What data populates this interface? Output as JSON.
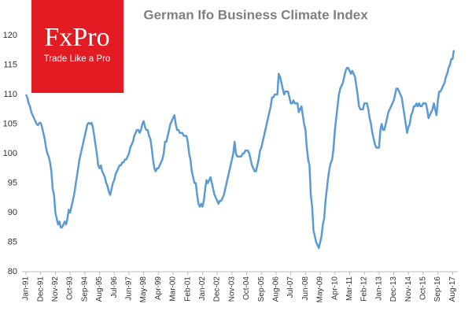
{
  "chart_data": {
    "type": "line",
    "title": "German Ifo Business Climate Index",
    "logo": {
      "name": "FxPro",
      "tagline": "Trade Like a Pro"
    },
    "categories": [
      "Jan-91",
      null,
      null,
      null,
      null,
      null,
      null,
      null,
      null,
      null,
      null,
      "Dec-91",
      null,
      null,
      null,
      null,
      null,
      null,
      null,
      null,
      null,
      null,
      "Nov-92",
      null,
      null,
      null,
      null,
      null,
      null,
      null,
      null,
      null,
      null,
      "Oct-93",
      null,
      null,
      null,
      null,
      null,
      null,
      null,
      null,
      null,
      null,
      "Sep-94",
      null,
      null,
      null,
      null,
      null,
      null,
      null,
      null,
      null,
      null,
      "Aug-95",
      null,
      null,
      null,
      null,
      null,
      null,
      null,
      null,
      null,
      null,
      "Jul-96",
      null,
      null,
      null,
      null,
      null,
      null,
      null,
      null,
      null,
      null,
      "Jun-97",
      null,
      null,
      null,
      null,
      null,
      null,
      null,
      null,
      null,
      null,
      "May-98",
      null,
      null,
      null,
      null,
      null,
      null,
      null,
      null,
      null,
      null,
      "Apr-99",
      null,
      null,
      null,
      null,
      null,
      null,
      null,
      null,
      null,
      null,
      "Mar-00",
      null,
      null,
      null,
      null,
      null,
      null,
      null,
      null,
      null,
      null,
      "Feb-01",
      null,
      null,
      null,
      null,
      null,
      null,
      null,
      null,
      null,
      null,
      "Jan-02",
      null,
      null,
      null,
      null,
      null,
      null,
      null,
      null,
      null,
      null,
      "Dec-02",
      null,
      null,
      null,
      null,
      null,
      null,
      null,
      null,
      null,
      null,
      "Nov-03",
      null,
      null,
      null,
      null,
      null,
      null,
      null,
      null,
      null,
      null,
      "Oct-04",
      null,
      null,
      null,
      null,
      null,
      null,
      null,
      null,
      null,
      null,
      "Sep-05",
      null,
      null,
      null,
      null,
      null,
      null,
      null,
      null,
      null,
      null,
      "Aug-06",
      null,
      null,
      null,
      null,
      null,
      null,
      null,
      null,
      null,
      null,
      "Jul-07",
      null,
      null,
      null,
      null,
      null,
      null,
      null,
      null,
      null,
      null,
      "Jun-08",
      null,
      null,
      null,
      null,
      null,
      null,
      null,
      null,
      null,
      null,
      "May-09",
      null,
      null,
      null,
      null,
      null,
      null,
      null,
      null,
      null,
      null,
      "Apr-10",
      null,
      null,
      null,
      null,
      null,
      null,
      null,
      null,
      null,
      null,
      "Mar-11",
      null,
      null,
      null,
      null,
      null,
      null,
      null,
      null,
      null,
      null,
      "Feb-12",
      null,
      null,
      null,
      null,
      null,
      null,
      null,
      null,
      null,
      null,
      "Jan-13",
      null,
      null,
      null,
      null,
      null,
      null,
      null,
      null,
      null,
      null,
      "Dec-13",
      null,
      null,
      null,
      null,
      null,
      null,
      null,
      null,
      null,
      null,
      "Nov-14",
      null,
      null,
      null,
      null,
      null,
      null,
      null,
      null,
      null,
      null,
      "Oct-15",
      null,
      null,
      null,
      null,
      null,
      null,
      null,
      null,
      null,
      null,
      "Sep-16",
      null,
      null,
      null,
      null,
      null,
      null,
      null,
      null,
      null,
      null,
      "Aug-17",
      null
    ],
    "values": [
      110,
      109.5,
      108.5,
      108,
      107,
      106.5,
      106,
      105.5,
      105,
      104.8,
      105.2,
      105.2,
      104.5,
      103.5,
      102.5,
      101,
      100,
      99.5,
      98.5,
      97,
      94,
      93,
      90,
      89,
      88,
      88.5,
      87.5,
      87.5,
      88,
      88.5,
      88,
      89,
      90.5,
      90,
      91,
      92,
      93,
      94.5,
      96,
      97.5,
      99,
      100,
      101,
      102,
      103,
      104,
      105,
      105.2,
      105,
      105.2,
      104.5,
      103,
      101.5,
      100,
      98,
      97.5,
      98,
      97,
      96.5,
      96,
      95,
      94.5,
      93.5,
      93,
      94,
      95,
      95.5,
      96.5,
      97,
      97.5,
      98,
      98,
      98.5,
      98.5,
      99,
      99,
      99.5,
      100,
      101,
      101.5,
      102,
      103,
      103.5,
      104,
      104,
      103.5,
      104,
      105,
      105.5,
      104.5,
      104,
      104,
      103,
      102.5,
      101,
      99,
      97.5,
      97,
      97.5,
      97.5,
      98,
      98.5,
      99,
      100,
      102,
      102,
      103,
      104,
      105,
      105.5,
      106,
      106.5,
      105,
      104,
      104,
      103.5,
      103.5,
      103.5,
      103,
      103,
      103,
      102,
      100,
      99,
      97,
      96,
      95,
      95,
      93,
      91.5,
      91,
      91.5,
      91,
      92,
      94,
      95.5,
      95,
      95.5,
      96,
      95,
      94,
      93,
      92.5,
      92,
      91.5,
      92,
      92,
      92.5,
      93,
      94,
      95,
      96,
      97,
      98,
      99,
      100,
      102,
      100,
      99.5,
      99.5,
      99.5,
      99.5,
      100,
      100,
      100.5,
      100.5,
      100.5,
      100,
      99,
      98,
      97.5,
      97,
      97,
      98,
      99,
      100.5,
      101,
      102,
      103,
      104,
      105,
      106,
      107,
      108,
      109.5,
      109.5,
      110,
      110,
      110,
      113.5,
      113,
      112,
      111,
      110,
      110.5,
      110.5,
      110.5,
      109.5,
      108.5,
      108.5,
      109,
      108.5,
      108.5,
      108.5,
      107,
      107.5,
      108,
      106.5,
      105,
      104,
      101,
      99,
      98,
      93,
      91,
      87,
      86,
      85,
      84.5,
      84,
      85,
      86,
      88,
      89,
      92,
      94,
      96,
      97.5,
      98.5,
      99,
      101,
      104,
      106,
      108,
      110,
      111,
      111.5,
      112,
      113,
      114,
      114.5,
      114.5,
      114,
      113.5,
      114,
      113.5,
      113,
      111.5,
      110,
      108,
      107.5,
      107.5,
      107.5,
      108.5,
      108.5,
      108.5,
      107.5,
      106,
      105,
      103.5,
      102.5,
      101.5,
      101,
      101,
      101,
      104,
      105,
      104,
      104,
      105,
      106,
      107,
      107.5,
      108,
      108.5,
      109,
      110,
      111,
      111,
      110.5,
      110,
      109.5,
      108,
      106.5,
      105,
      103.5,
      104.5,
      105,
      106.5,
      107,
      108,
      108,
      108.5,
      108,
      108.5,
      108,
      108,
      108.5,
      108.5,
      108.5,
      107.5,
      106,
      106.5,
      107,
      107.5,
      108.5,
      107.5,
      106.5,
      109,
      110.5,
      110.5,
      111,
      111.5,
      112,
      113,
      113.5,
      114.5,
      115,
      116,
      116,
      117.5
    ],
    "color": "#5b9bd5",
    "ylim": [
      80,
      120
    ],
    "yticks": [
      80,
      85,
      90,
      95,
      100,
      105,
      110,
      115,
      120
    ],
    "grid": false
  }
}
